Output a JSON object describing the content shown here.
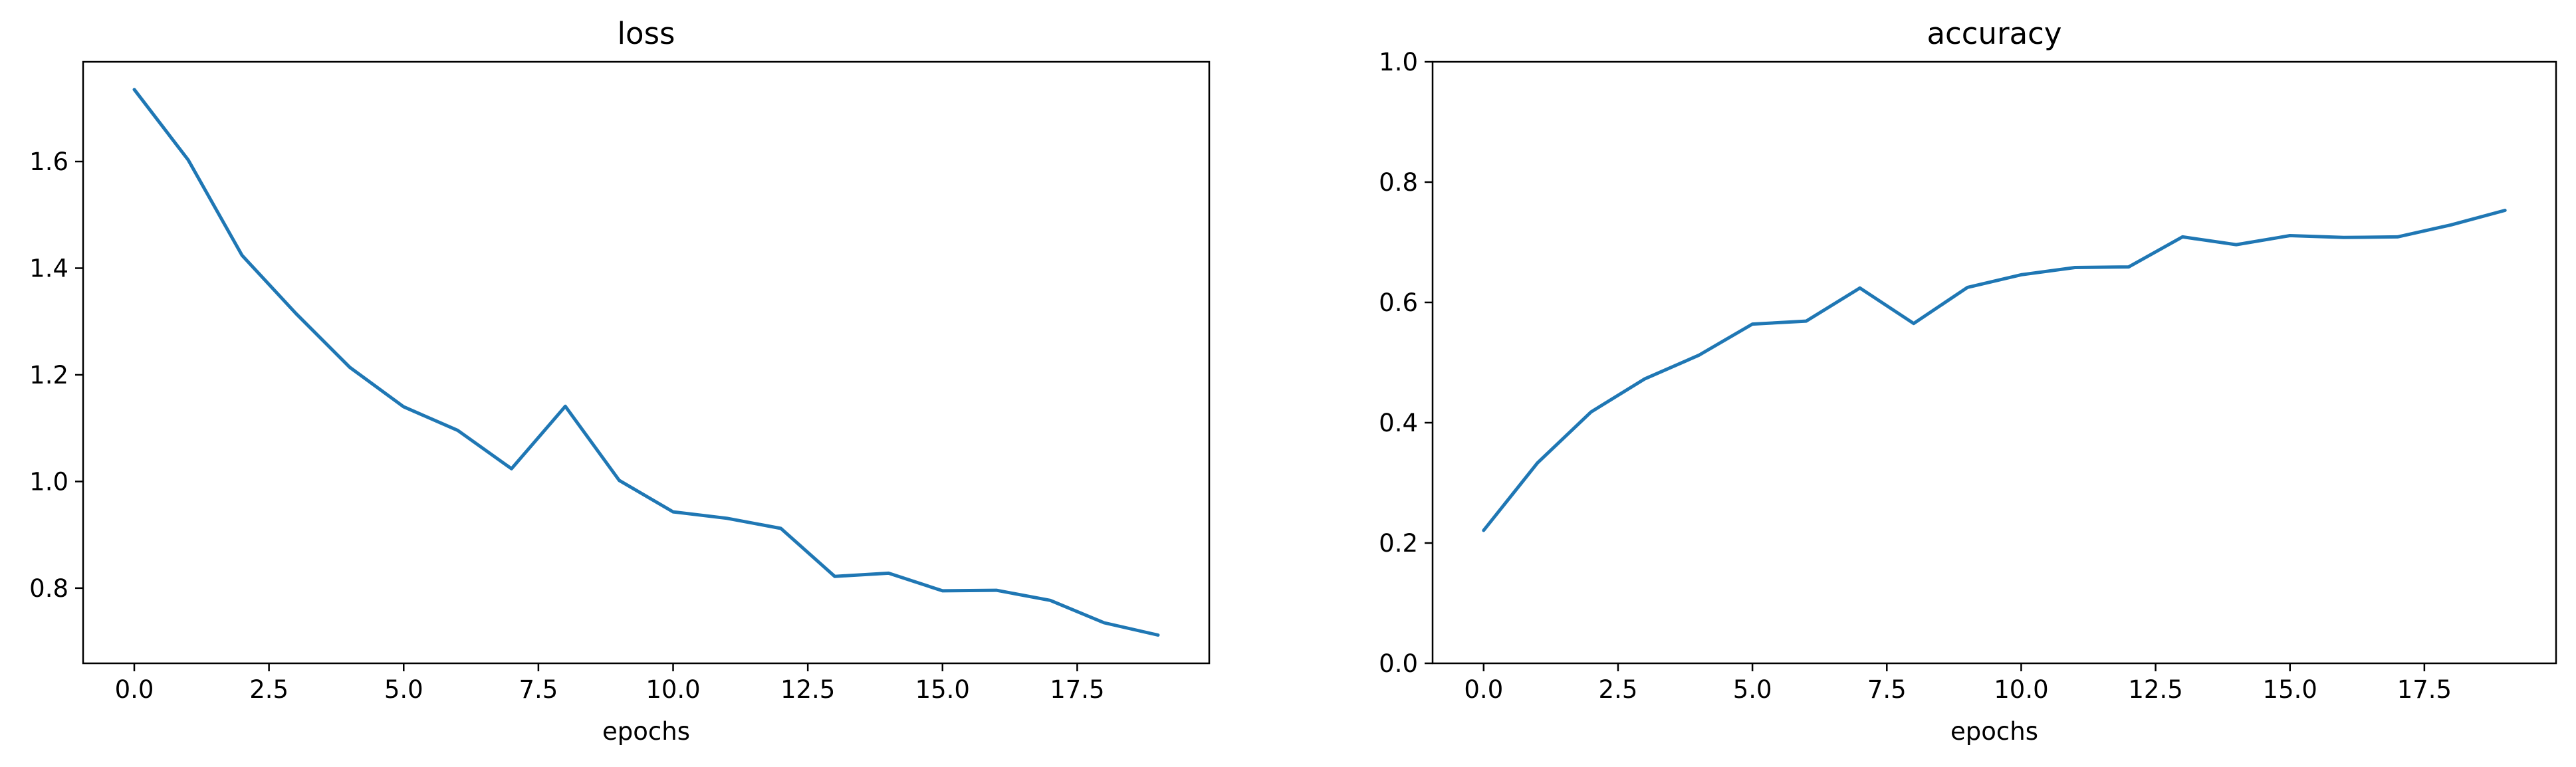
{
  "chart_data": [
    {
      "type": "line",
      "title": "loss",
      "xlabel": "epochs",
      "ylabel": "",
      "xlim": [
        -0.95,
        19.95
      ],
      "ylim": [
        0.659,
        1.787
      ],
      "xticks": [
        0.0,
        2.5,
        5.0,
        7.5,
        10.0,
        12.5,
        15.0,
        17.5
      ],
      "xtick_labels": [
        "0.0",
        "2.5",
        "5.0",
        "7.5",
        "10.0",
        "12.5",
        "15.0",
        "17.5"
      ],
      "yticks": [
        0.8,
        1.0,
        1.2,
        1.4,
        1.6
      ],
      "ytick_labels": [
        "0.8",
        "1.0",
        "1.2",
        "1.4",
        "1.6"
      ],
      "grid": false,
      "x": [
        0,
        1,
        2,
        3,
        4,
        5,
        6,
        7,
        8,
        9,
        10,
        11,
        12,
        13,
        14,
        15,
        16,
        17,
        18,
        19
      ],
      "series": [
        {
          "values": [
            1.735,
            1.603,
            1.424,
            1.315,
            1.214,
            1.14,
            1.096,
            1.024,
            1.141,
            1.002,
            0.943,
            0.931,
            0.912,
            0.822,
            0.828,
            0.795,
            0.796,
            0.777,
            0.735,
            0.712
          ],
          "color": "#1f77b4"
        }
      ]
    },
    {
      "type": "line",
      "title": "accuracy",
      "xlabel": "epochs",
      "ylabel": "",
      "xlim": [
        -0.95,
        19.95
      ],
      "ylim": [
        0.0,
        1.0
      ],
      "xticks": [
        0.0,
        2.5,
        5.0,
        7.5,
        10.0,
        12.5,
        15.0,
        17.5
      ],
      "xtick_labels": [
        "0.0",
        "2.5",
        "5.0",
        "7.5",
        "10.0",
        "12.5",
        "15.0",
        "17.5"
      ],
      "yticks": [
        0.0,
        0.2,
        0.4,
        0.6,
        0.8,
        1.0
      ],
      "ytick_labels": [
        "0.0",
        "0.2",
        "0.4",
        "0.6",
        "0.8",
        "1.0"
      ],
      "grid": false,
      "x": [
        0,
        1,
        2,
        3,
        4,
        5,
        6,
        7,
        8,
        9,
        10,
        11,
        12,
        13,
        14,
        15,
        16,
        17,
        18,
        19
      ],
      "series": [
        {
          "values": [
            0.221,
            0.333,
            0.418,
            0.473,
            0.512,
            0.564,
            0.569,
            0.624,
            0.565,
            0.625,
            0.646,
            0.658,
            0.659,
            0.709,
            0.696,
            0.711,
            0.708,
            0.709,
            0.729,
            0.753
          ],
          "color": "#1f77b4"
        }
      ]
    }
  ]
}
